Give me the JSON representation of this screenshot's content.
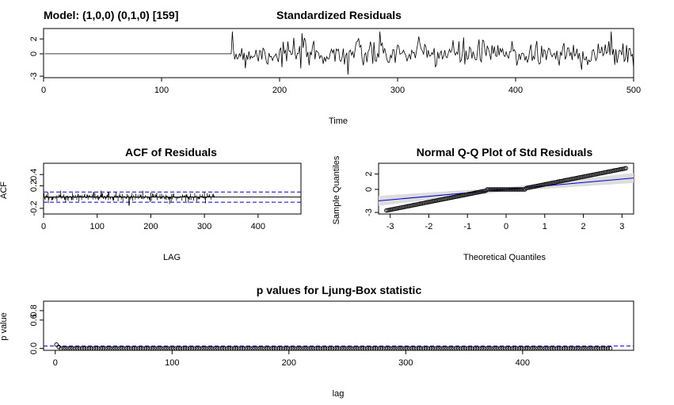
{
  "model_label": "Model: (1,0,0) (0,1,0) [159]",
  "colors": {
    "reference": "#0000cc",
    "band": "#dddddd",
    "data": "#000000"
  },
  "chart_data": [
    {
      "id": "residuals",
      "type": "line",
      "title": "Standardized Residuals",
      "xlabel": "Time",
      "ylabel": "",
      "xlim": [
        0,
        500
      ],
      "ylim": [
        -3.2,
        3.4
      ],
      "xticks": [
        "0",
        "100",
        "200",
        "300",
        "400",
        "500"
      ],
      "yticks": [
        "-3",
        "0",
        "2"
      ],
      "series": [
        {
          "x_range": [
            1,
            159
          ],
          "value": 0
        },
        {
          "x_range": [
            160,
            500
          ],
          "amplitude_typical": 1.5,
          "max": 3.0,
          "min": -2.8
        }
      ]
    },
    {
      "id": "acf",
      "type": "bar",
      "title": "ACF of Residuals",
      "xlabel": "LAG",
      "ylabel": "ACF",
      "xlim": [
        0,
        480
      ],
      "ylim": [
        -0.3,
        0.6
      ],
      "xticks": [
        "0",
        "100",
        "200",
        "300",
        "400"
      ],
      "yticks": [
        "-0.2",
        "0.2",
        "0.4"
      ],
      "confidence_bound": 0.09,
      "max_lag": 320
    },
    {
      "id": "qq",
      "type": "scatter",
      "title": "Normal Q-Q Plot of Std Residuals",
      "xlabel": "Theoretical Quantiles",
      "ylabel": "Sample Quantiles",
      "xlim": [
        -3.3,
        3.3
      ],
      "ylim": [
        -3.2,
        3.4
      ],
      "xticks": [
        "-3",
        "-2",
        "-1",
        "0",
        "1",
        "2",
        "3"
      ],
      "yticks": [
        "-3",
        "0",
        "2"
      ],
      "reference_line": {
        "slope": 0.45,
        "intercept": 0.0
      },
      "points_range": {
        "x": [
          -3.1,
          3.1
        ],
        "y": [
          -2.9,
          3.0
        ]
      }
    },
    {
      "id": "ljung",
      "type": "scatter",
      "title": "p values for Ljung-Box statistic",
      "xlabel": "lag",
      "ylabel": "p value",
      "xlim": [
        -10,
        495
      ],
      "ylim": [
        -0.04,
        1.0
      ],
      "xticks": [
        "0",
        "100",
        "200",
        "300",
        "400"
      ],
      "yticks": [
        "0.0",
        "0.6",
        "0.8"
      ],
      "significance_level": 0.05,
      "lag_range": [
        1,
        475
      ],
      "p_values_first": [
        0.08,
        0.05,
        0.03
      ],
      "p_values_rest": 0.0
    }
  ]
}
